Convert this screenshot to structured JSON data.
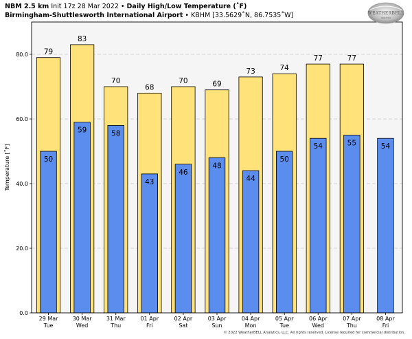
{
  "header": {
    "model": "NBM 2.5 km",
    "init": "Init 17z 28 Mar 2022",
    "bullet": "•",
    "title": "Daily High/Low Temperature (˚F)",
    "station_name": "Birmingham-Shuttlesworth International Airport",
    "station_info": "KBHM [33.5629˚N, 86.7535˚W]"
  },
  "logo": {
    "text": "WEATHERBELL",
    "sub": "ANALYTICS"
  },
  "footer": {
    "copyright": "© 2022 WeatherBELL Analytics, LLC. All rights reserved. License required for commercial distribution."
  },
  "colors": {
    "high": "#ffe27a",
    "low": "#5b8def",
    "plot_bg": "#f5f5f5",
    "grid": "#c8c8c8"
  },
  "chart_data": {
    "type": "bar",
    "ylabel": "Temperature [˚F]",
    "ylim": [
      0,
      90
    ],
    "yticks": [
      0.0,
      20.0,
      40.0,
      60.0,
      80.0
    ],
    "grid": true,
    "categories": [
      {
        "date": "29 Mar",
        "day": "Tue"
      },
      {
        "date": "30 Mar",
        "day": "Wed"
      },
      {
        "date": "31 Mar",
        "day": "Thu"
      },
      {
        "date": "01 Apr",
        "day": "Fri"
      },
      {
        "date": "02 Apr",
        "day": "Sat"
      },
      {
        "date": "03 Apr",
        "day": "Sun"
      },
      {
        "date": "04 Apr",
        "day": "Mon"
      },
      {
        "date": "05 Apr",
        "day": "Tue"
      },
      {
        "date": "06 Apr",
        "day": "Wed"
      },
      {
        "date": "07 Apr",
        "day": "Thu"
      },
      {
        "date": "08 Apr",
        "day": "Fri"
      }
    ],
    "series": [
      {
        "values": [
          79,
          83,
          70,
          68,
          70,
          69,
          73,
          74,
          77,
          77,
          null
        ]
      },
      {
        "values": [
          50,
          59,
          58,
          43,
          46,
          48,
          44,
          50,
          54,
          55,
          54
        ]
      }
    ]
  }
}
